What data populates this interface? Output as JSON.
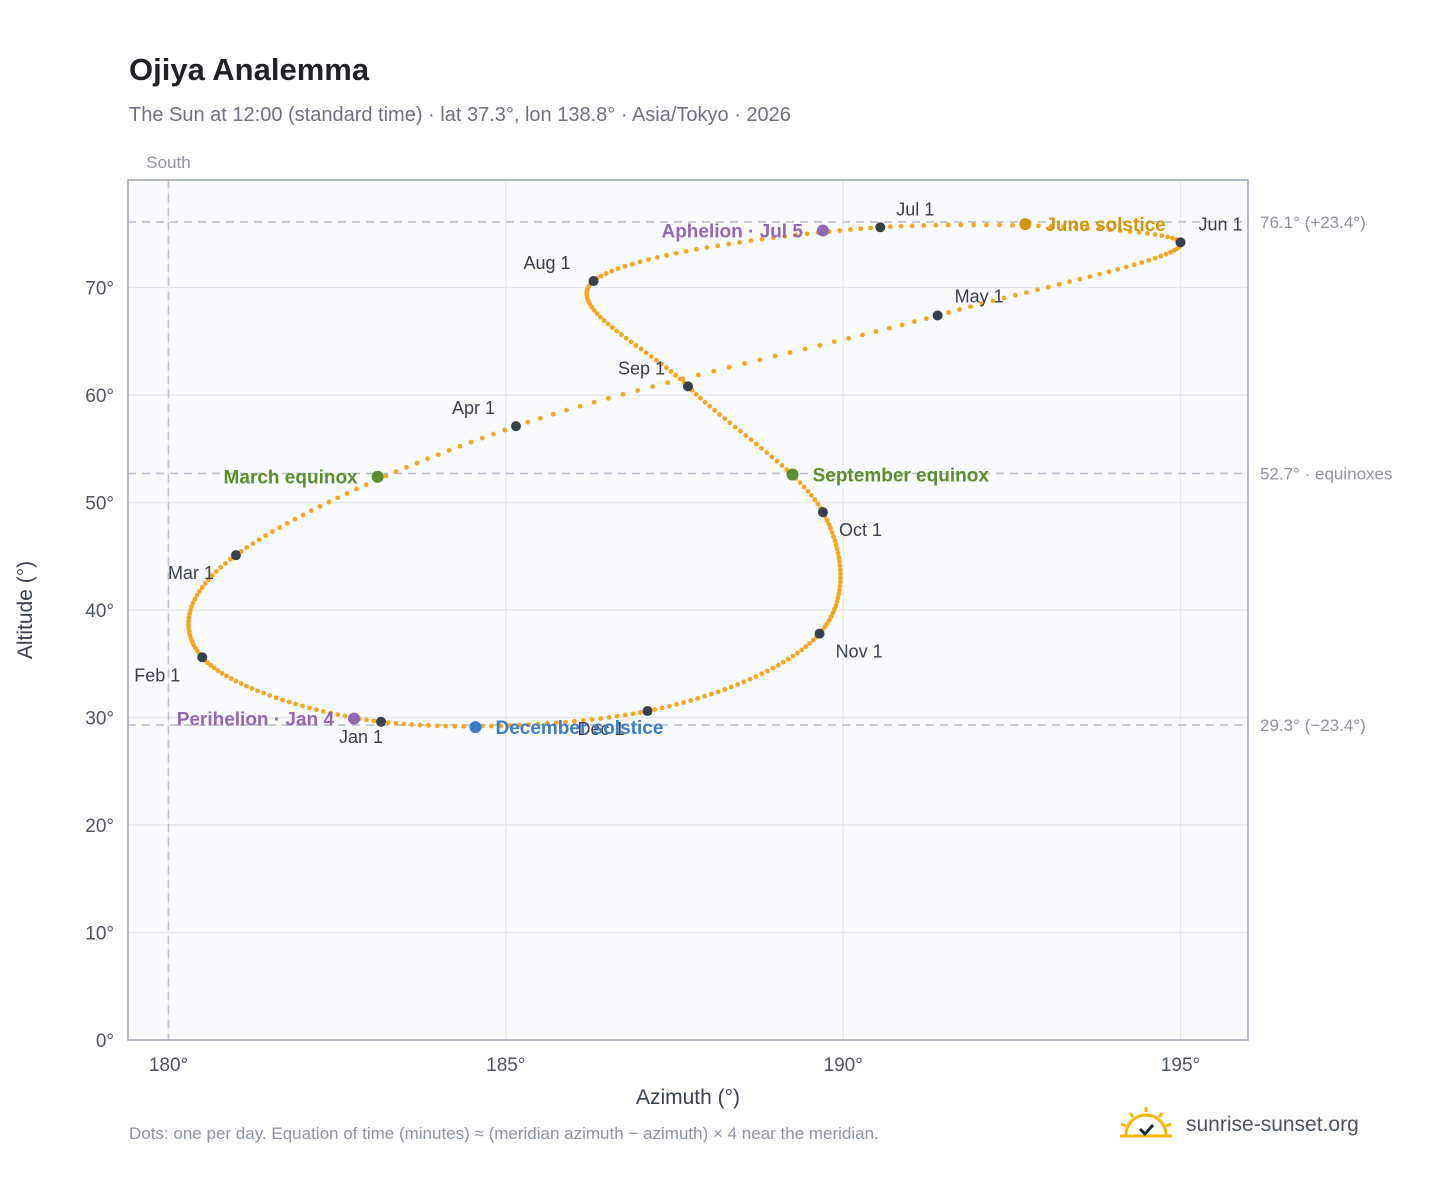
{
  "title": "Ojiya Analemma",
  "subtitle": "The Sun at 12:00 (standard time) · lat 37.3°, lon 138.8° · Asia/Tokyo · 2026",
  "footnote": "Dots: one per day. Equation of time (minutes) ≈ (meridian azimuth − azimuth) × 4 near the meridian.",
  "brand": {
    "name": "sunrise-sunset.org",
    "icon": "sun-logo-icon",
    "color": "#f2b705"
  },
  "colors": {
    "path": "#f5a623",
    "month_marker": "#37414d",
    "solstice_june": "#d4930c",
    "solstice_december": "#3d7cc4",
    "equinox": "#5a8f2e",
    "apsis": "#9366b8",
    "reference_line": "#b8c4d0",
    "plot_bg": "#f9fbfd",
    "grid": "#e3e8ee"
  },
  "chart_data": {
    "type": "scatter",
    "xlabel": "Azimuth (°)",
    "ylabel": "Altitude (°)",
    "xlim": [
      179.4,
      196.0
    ],
    "ylim": [
      0,
      80
    ],
    "xticks": [
      180,
      185,
      190,
      195
    ],
    "xtick_labels": [
      "180°",
      "185°",
      "190°",
      "195°"
    ],
    "yticks": [
      0,
      10,
      20,
      30,
      40,
      50,
      60,
      70
    ],
    "ytick_labels": [
      "0°",
      "10°",
      "20°",
      "30°",
      "40°",
      "50°",
      "60°",
      "70°"
    ],
    "grid": true,
    "vertical_reference": {
      "x": 180,
      "label": "South"
    },
    "horizontal_references": [
      {
        "y": 76.1,
        "label": "76.1° (+23.4°)"
      },
      {
        "y": 52.7,
        "label": "52.7° · equinoxes"
      },
      {
        "y": 29.3,
        "label": "29.3° (−23.4°)"
      }
    ],
    "path_description": "One dot per day of 2026",
    "month_markers": [
      {
        "label": "Jan 1",
        "az": 183.15,
        "alt": 29.6
      },
      {
        "label": "Feb 1",
        "az": 180.5,
        "alt": 35.6
      },
      {
        "label": "Mar 1",
        "az": 181.0,
        "alt": 45.1
      },
      {
        "label": "Apr 1",
        "az": 185.15,
        "alt": 57.1
      },
      {
        "label": "May 1",
        "az": 191.4,
        "alt": 67.4
      },
      {
        "label": "Jun 1",
        "az": 195.0,
        "alt": 74.2
      },
      {
        "label": "Jul 1",
        "az": 190.55,
        "alt": 75.6
      },
      {
        "label": "Aug 1",
        "az": 186.3,
        "alt": 70.6
      },
      {
        "label": "Sep 1",
        "az": 187.7,
        "alt": 60.8
      },
      {
        "label": "Oct 1",
        "az": 189.7,
        "alt": 49.1
      },
      {
        "label": "Nov 1",
        "az": 189.65,
        "alt": 37.8
      },
      {
        "label": "Dec 1",
        "az": 187.1,
        "alt": 30.6
      }
    ],
    "events": [
      {
        "label": "June solstice",
        "az": 192.7,
        "alt": 75.9,
        "kind": "solstice_june"
      },
      {
        "label": "December solstice",
        "az": 184.55,
        "alt": 29.1,
        "kind": "solstice_december"
      },
      {
        "label": "March equinox",
        "az": 183.1,
        "alt": 52.4,
        "kind": "equinox"
      },
      {
        "label": "September equinox",
        "az": 189.25,
        "alt": 52.6,
        "kind": "equinox"
      },
      {
        "label": "Perihelion · Jan 4",
        "az": 182.75,
        "alt": 29.9,
        "kind": "apsis"
      },
      {
        "label": "Aphelion · Jul 5",
        "az": 189.7,
        "alt": 75.3,
        "kind": "apsis"
      }
    ]
  }
}
